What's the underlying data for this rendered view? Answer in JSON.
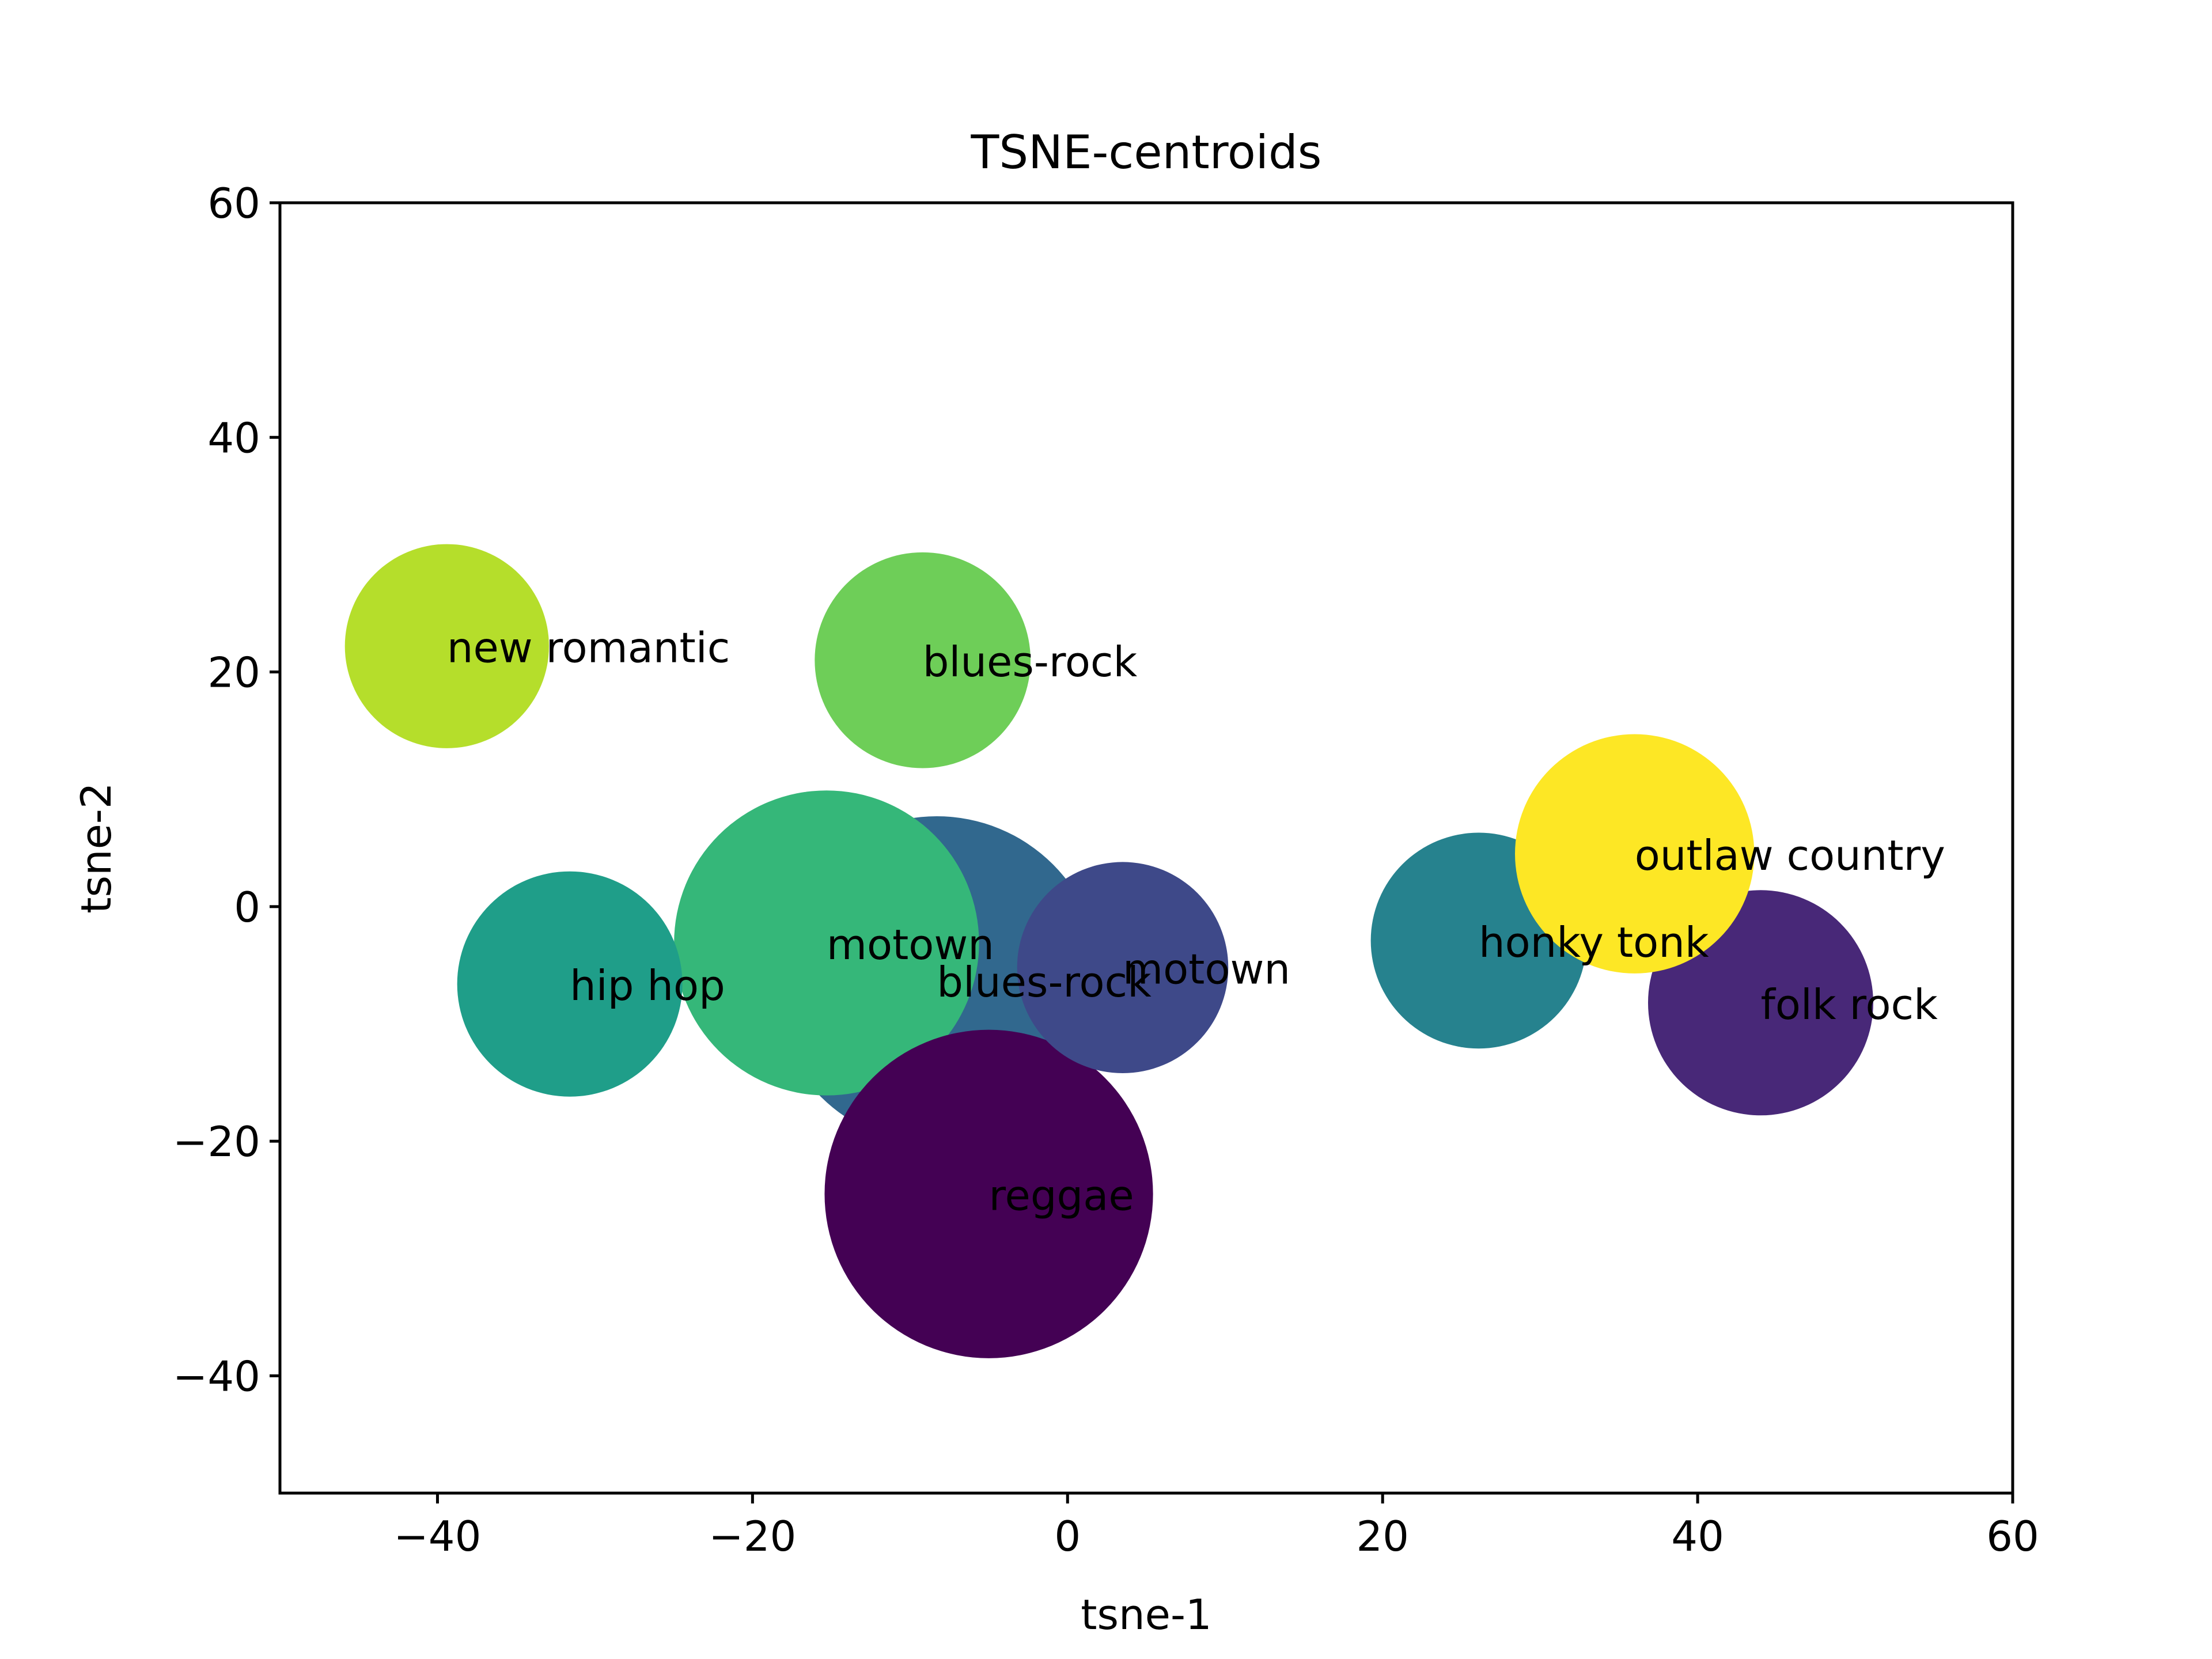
{
  "chart_data": {
    "type": "scatter",
    "title": "TSNE-centroids",
    "xlabel": "tsne-1",
    "ylabel": "tsne-2",
    "xlim": [
      -50,
      60
    ],
    "ylim": [
      -50,
      60
    ],
    "xticks": [
      -40,
      -20,
      0,
      20,
      40,
      60
    ],
    "yticks": [
      -40,
      -20,
      0,
      20,
      40,
      60
    ],
    "xtick_labels": [
      "−40",
      "−20",
      "0",
      "20",
      "40",
      "60"
    ],
    "ytick_labels": [
      "−40",
      "−20",
      "0",
      "20",
      "40",
      "60"
    ],
    "grid": false,
    "points": [
      {
        "label": "blues-rock",
        "x": -8.3,
        "y": -6.3,
        "size": 14.0,
        "color": "#31688e"
      },
      {
        "label": "motown",
        "x": -15.3,
        "y": -3.1,
        "size": 13.0,
        "color": "#35b779"
      },
      {
        "label": "reggae",
        "x": -5.0,
        "y": -24.5,
        "size": 14.0,
        "color": "#440154"
      },
      {
        "label": "hip hop",
        "x": -31.6,
        "y": -6.6,
        "size": 9.6,
        "color": "#1f9e89"
      },
      {
        "label": "motown",
        "x": 3.5,
        "y": -5.2,
        "size": 9.0,
        "color": "#3e4989"
      },
      {
        "label": "honky tonk",
        "x": 26.1,
        "y": -2.9,
        "size": 9.2,
        "color": "#26828e"
      },
      {
        "label": "folk rock",
        "x": 44.0,
        "y": -8.2,
        "size": 9.6,
        "color": "#482878"
      },
      {
        "label": "outlaw country",
        "x": 36.0,
        "y": 4.5,
        "size": 10.2,
        "color": "#fde725"
      },
      {
        "label": "new romantic",
        "x": -39.4,
        "y": 22.2,
        "size": 8.7,
        "color": "#b5de2b"
      },
      {
        "label": "blues-rock",
        "x": -9.2,
        "y": 21.0,
        "size": 9.2,
        "color": "#6ece58"
      }
    ]
  }
}
